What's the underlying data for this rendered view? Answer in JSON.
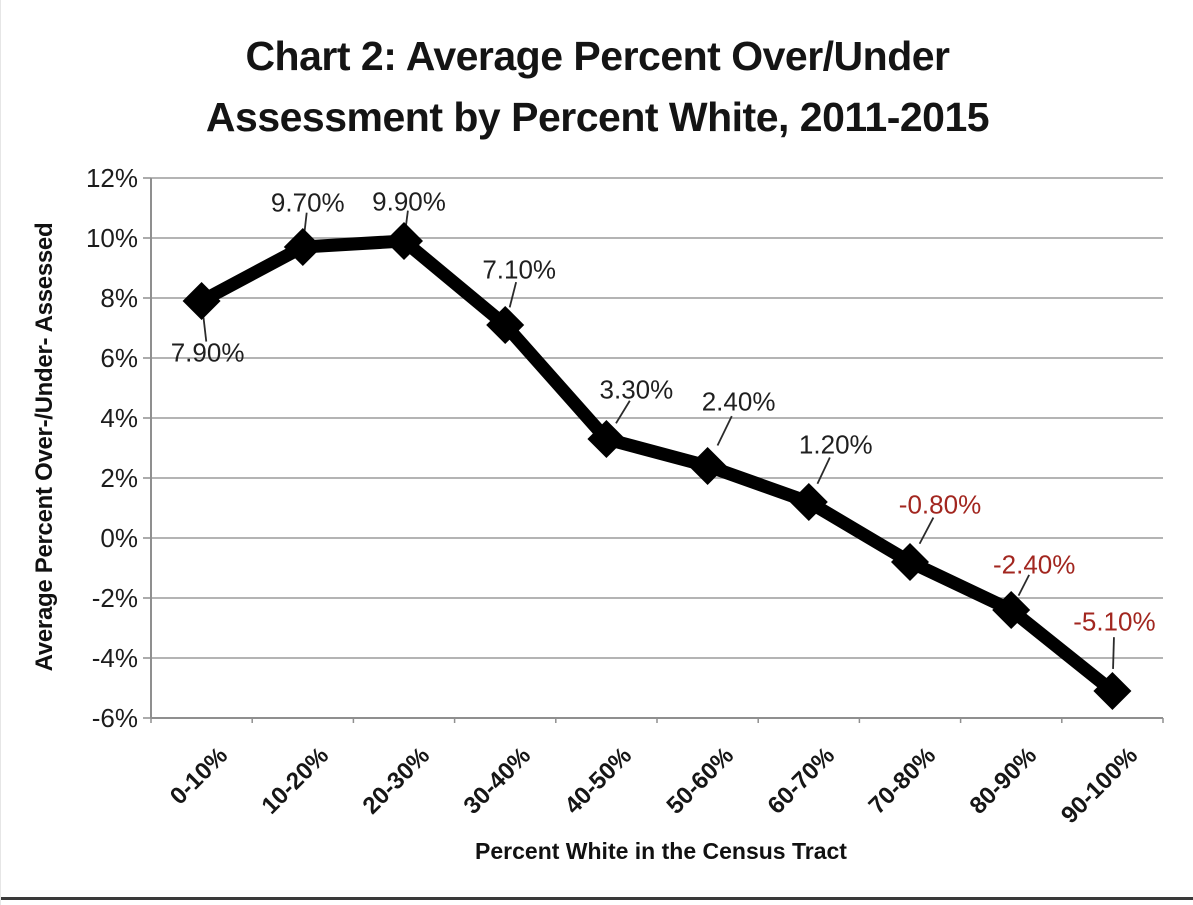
{
  "title": {
    "line1": "Chart 2: Average Percent Over/Under",
    "line2": "Assessment by Percent White, 2011-2015"
  },
  "chart_data": {
    "type": "line",
    "title": "Chart 2: Average Percent Over/Under Assessment by Percent White, 2011-2015",
    "categories": [
      "0-10%",
      "10-20%",
      "20-30%",
      "30-40%",
      "40-50%",
      "50-60%",
      "60-70%",
      "70-80%",
      "80-90%",
      "90-100%"
    ],
    "values": [
      7.9,
      9.7,
      9.9,
      7.1,
      3.3,
      2.4,
      1.2,
      -0.8,
      -2.4,
      -5.1
    ],
    "point_labels": [
      "7.90%",
      "9.70%",
      "9.90%",
      "7.10%",
      "3.30%",
      "2.40%",
      "1.20%",
      "-0.80%",
      "-2.40%",
      "-5.10%"
    ],
    "y_ticks": [
      "12%",
      "10%",
      "8%",
      "6%",
      "4%",
      "2%",
      "0%",
      "-2%",
      "-4%",
      "-6%"
    ],
    "ylim": [
      -6,
      12
    ],
    "y_step": 2,
    "xlabel": "Percent White in the Census Tract",
    "ylabel": "Average Percent Over-/Under- Assessed",
    "grid": true,
    "legend": "none",
    "colors": {
      "line": "#000000",
      "marker": "#000000",
      "gridline": "#9b9b9b",
      "axis": "#8f8f8f",
      "positive_label": "#1f1f1f",
      "negative_label": "#a2261f",
      "leader_line": "#2b2b2b"
    }
  }
}
